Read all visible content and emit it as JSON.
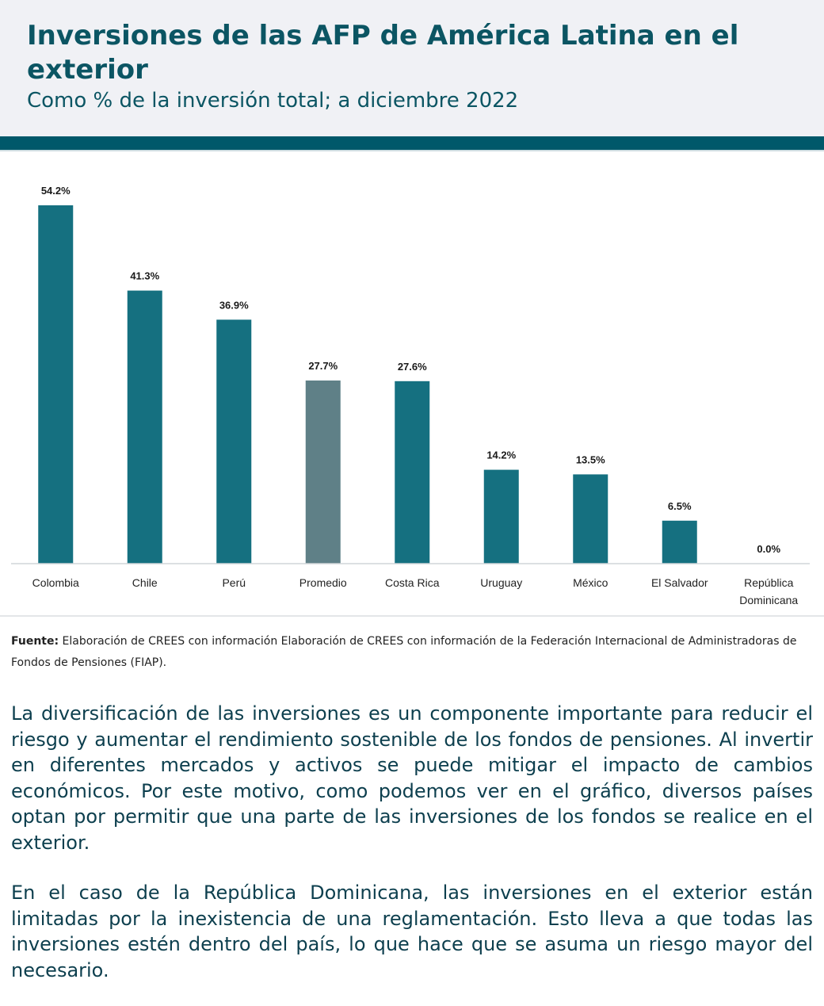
{
  "header": {
    "title": "Inversiones de las AFP de América Latina en el exterior",
    "subtitle": "Como % de la inversión total; a diciembre 2022"
  },
  "colors": {
    "header_bg": "#f0f1f5",
    "accent_bar": "#00586a",
    "title_text": "#0b5563",
    "bar_country": "#157080",
    "bar_average": "#5f8087",
    "body_text": "#0d3f4e"
  },
  "chart_data": {
    "type": "bar",
    "title": "Inversiones de las AFP de América Latina en el exterior",
    "subtitle": "Como % de la inversión total; a diciembre 2022",
    "xlabel": "",
    "ylabel": "",
    "ylim": [
      0,
      60
    ],
    "grid": false,
    "legend": "none",
    "unit": "%",
    "categories": [
      "Colombia",
      "Chile",
      "Perú",
      "Promedio",
      "Costa Rica",
      "Uruguay",
      "México",
      "El Salvador",
      "República Dominicana"
    ],
    "category_lines": [
      [
        "Colombia"
      ],
      [
        "Chile"
      ],
      [
        "Perú"
      ],
      [
        "Promedio"
      ],
      [
        "Costa Rica"
      ],
      [
        "Uruguay"
      ],
      [
        "México"
      ],
      [
        "El Salvador"
      ],
      [
        "República",
        "Dominicana"
      ]
    ],
    "values": [
      54.2,
      41.3,
      36.9,
      27.7,
      27.6,
      14.2,
      13.5,
      6.5,
      0.0
    ],
    "data_labels": [
      "54.2%",
      "41.3%",
      "36.9%",
      "27.7%",
      "27.6%",
      "14.2%",
      "13.5%",
      "6.5%",
      "0.0%"
    ],
    "highlight": [
      "Promedio"
    ]
  },
  "source": {
    "label": "Fuente:",
    "text": "Elaboración de CREES con información Elaboración de CREES con información de la Federación Internacional de Administradoras de Fondos de Pensiones (FIAP)."
  },
  "body": {
    "paragraphs": [
      "La diversificación de las inversiones es un componente importante para reducir el riesgo y aumentar el rendimiento sostenible de los fondos de pensiones. Al invertir en diferentes mercados y activos se puede mitigar el impacto de cambios económicos. Por este motivo, como podemos ver en el gráfico, diversos países optan por permitir que una parte de las inversiones de los fondos se realice en el exterior.",
      "En el caso de la República Dominicana, las inversiones en el exterior están limitadas por la inexistencia de una reglamentación. Esto lleva a que todas las inversiones estén dentro del país, lo que hace que se asuma un riesgo mayor del necesario."
    ]
  }
}
